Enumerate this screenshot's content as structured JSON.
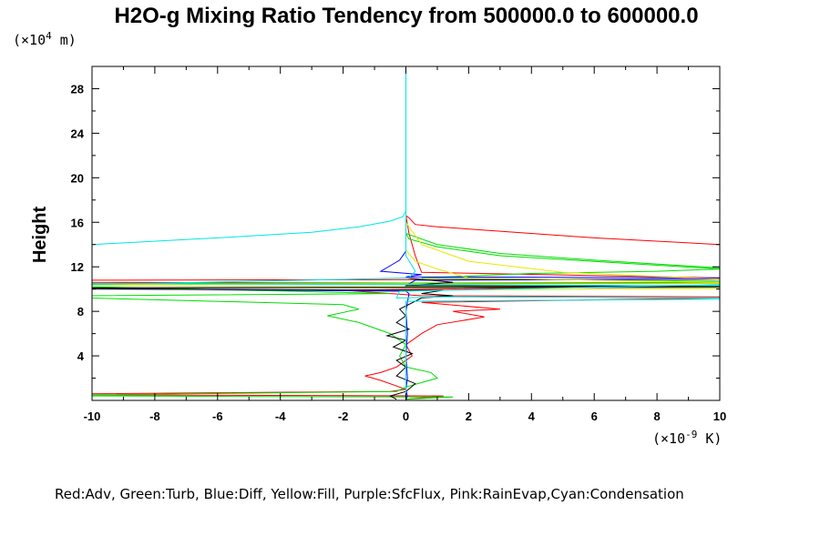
{
  "chart_data": {
    "type": "line",
    "title": "H2O-g Mixing Ratio Tendency from 500000.0 to 600000.0",
    "ylabel": "Height",
    "y_unit_prefix": "(×10",
    "y_unit_exp": "4",
    "y_unit_suffix": " m)",
    "x_unit_prefix": "(×10",
    "x_unit_exp": "-9",
    "x_unit_suffix": " K)",
    "legend_text": "Red:Adv, Green:Turb, Blue:Diff, Yellow:Fill, Purple:SfcFlux, Pink:RainEvap,Cyan:Condensation",
    "xlim": [
      -10,
      10
    ],
    "ylim": [
      0,
      30
    ],
    "x_ticks": [
      -10,
      -8,
      -6,
      -4,
      -2,
      0,
      2,
      4,
      6,
      8,
      10
    ],
    "y_ticks": [
      4,
      8,
      12,
      16,
      20,
      24,
      28
    ],
    "grid": false,
    "series": [
      {
        "name": "Red:Adv",
        "color": "#ff0000",
        "points": [
          [
            0,
            0.1
          ],
          [
            1.2,
            0.4
          ],
          [
            -10,
            0.5
          ],
          [
            -10,
            0.6
          ],
          [
            -0.5,
            0.8
          ],
          [
            0,
            1.0
          ],
          [
            -0.8,
            1.8
          ],
          [
            -1.3,
            2.2
          ],
          [
            -0.8,
            2.5
          ],
          [
            -0.3,
            3.0
          ],
          [
            0.2,
            4.0
          ],
          [
            0,
            5.0
          ],
          [
            0.5,
            6.0
          ],
          [
            1.0,
            6.8
          ],
          [
            2.5,
            7.5
          ],
          [
            1.5,
            8.0
          ],
          [
            3.0,
            8.2
          ],
          [
            0.5,
            8.8
          ],
          [
            10,
            9.2
          ],
          [
            10,
            9.3
          ],
          [
            0.5,
            9.4
          ],
          [
            -2,
            9.9
          ],
          [
            10,
            10.3
          ],
          [
            10,
            10.5
          ],
          [
            -10,
            10.6
          ],
          [
            -10,
            10.8
          ],
          [
            10,
            10.9
          ],
          [
            10,
            11.0
          ],
          [
            0.5,
            11.5
          ],
          [
            0.3,
            13.0
          ],
          [
            0.1,
            15.0
          ],
          [
            0,
            16.6
          ],
          [
            0.1,
            16.4
          ],
          [
            0.3,
            15.8
          ],
          [
            1,
            15.6
          ],
          [
            3,
            15.2
          ],
          [
            6,
            14.6
          ],
          [
            10,
            14.0
          ]
        ]
      },
      {
        "name": "Green:Turb",
        "color": "#00dd00",
        "points": [
          [
            0,
            0.1
          ],
          [
            1.5,
            0.3
          ],
          [
            -10,
            0.4
          ],
          [
            -10,
            0.5
          ],
          [
            -0.3,
            0.8
          ],
          [
            0,
            1.2
          ],
          [
            0.5,
            1.6
          ],
          [
            1.0,
            2.0
          ],
          [
            0.8,
            2.5
          ],
          [
            0,
            3.0
          ],
          [
            -0.2,
            4.0
          ],
          [
            0,
            5.0
          ],
          [
            -0.5,
            6.0
          ],
          [
            -1.5,
            7.0
          ],
          [
            -2.5,
            7.6
          ],
          [
            -1.5,
            8.2
          ],
          [
            -2.0,
            8.6
          ],
          [
            -10,
            9.2
          ],
          [
            -10,
            9.4
          ],
          [
            -0.5,
            9.6
          ],
          [
            -10,
            10.2
          ],
          [
            -10,
            10.5
          ],
          [
            10,
            10.6
          ],
          [
            10,
            10.7
          ],
          [
            0.5,
            11.0
          ],
          [
            4.0,
            11.4
          ],
          [
            8.0,
            11.6
          ],
          [
            10,
            11.8
          ],
          [
            3.0,
            13.0
          ],
          [
            1.0,
            13.8
          ],
          [
            0.1,
            14.5
          ],
          [
            0,
            15.0
          ],
          [
            1,
            14.0
          ],
          [
            3,
            13.2
          ],
          [
            6,
            12.6
          ],
          [
            10,
            11.9
          ]
        ]
      },
      {
        "name": "Blue:Diff",
        "color": "#0000ff",
        "points": [
          [
            0,
            0.05
          ],
          [
            0.05,
            0.4
          ],
          [
            0,
            1.0
          ],
          [
            0.05,
            2.0
          ],
          [
            0,
            4.0
          ],
          [
            0.05,
            6.0
          ],
          [
            0,
            8.0
          ],
          [
            0.1,
            9.6
          ],
          [
            0,
            9.8
          ],
          [
            -8,
            10.0
          ],
          [
            -10,
            10.1
          ],
          [
            10,
            10.15
          ],
          [
            10,
            10.2
          ],
          [
            0,
            10.3
          ],
          [
            0.3,
            10.8
          ],
          [
            10,
            10.9
          ],
          [
            10,
            11.0
          ],
          [
            0,
            11.1
          ],
          [
            0.5,
            11.3
          ],
          [
            -0.8,
            11.6
          ],
          [
            -0.5,
            12.1
          ],
          [
            -0.2,
            12.6
          ],
          [
            0,
            13.4
          ],
          [
            0,
            14.0
          ]
        ]
      },
      {
        "name": "Yellow:Fill",
        "color": "#e8e800",
        "points": [
          [
            0,
            9.9
          ],
          [
            10,
            10.05
          ],
          [
            10,
            10.15
          ],
          [
            -10,
            10.3
          ],
          [
            -10,
            10.4
          ],
          [
            10,
            10.5
          ],
          [
            10,
            10.6
          ],
          [
            2,
            11.0
          ],
          [
            1,
            11.8
          ],
          [
            0.3,
            12.5
          ],
          [
            0,
            13.5
          ],
          [
            0,
            16.0
          ],
          [
            0.5,
            14.0
          ],
          [
            2,
            12.5
          ],
          [
            5,
            11.5
          ],
          [
            10,
            10.9
          ]
        ]
      },
      {
        "name": "Black",
        "color": "#000000",
        "points": [
          [
            -0.3,
            0.1
          ],
          [
            -0.5,
            0.4
          ],
          [
            0,
            0.8
          ],
          [
            0.3,
            1.5
          ],
          [
            -0.3,
            2.2
          ],
          [
            0,
            3.0
          ],
          [
            -0.3,
            3.6
          ],
          [
            0.2,
            4.2
          ],
          [
            -0.4,
            4.8
          ],
          [
            0,
            5.4
          ],
          [
            -0.6,
            5.8
          ],
          [
            0.1,
            6.4
          ],
          [
            -0.3,
            7.0
          ],
          [
            0,
            7.6
          ],
          [
            -0.2,
            8.2
          ],
          [
            0.5,
            9.2
          ],
          [
            1.5,
            9.4
          ],
          [
            0.5,
            9.6
          ],
          [
            1.2,
            9.9
          ],
          [
            -10,
            10.0
          ],
          [
            -10,
            10.1
          ],
          [
            10,
            10.2
          ],
          [
            10,
            10.25
          ],
          [
            0,
            10.3
          ],
          [
            1.5,
            10.6
          ],
          [
            0,
            11.0
          ]
        ]
      },
      {
        "name": "Cyan:Condensation",
        "color": "#00e5e5",
        "points": [
          [
            -10,
            14.0
          ],
          [
            -6,
            14.6
          ],
          [
            -3,
            15.1
          ],
          [
            -1.5,
            15.6
          ],
          [
            -0.5,
            16.1
          ],
          [
            -0.1,
            16.5
          ],
          [
            0,
            17.0
          ],
          [
            0,
            30
          ],
          [
            0,
            17.0
          ],
          [
            0,
            13.0
          ],
          [
            0.3,
            11.6
          ],
          [
            0.1,
            11.0
          ],
          [
            -10,
            10.4
          ],
          [
            -10,
            10.5
          ],
          [
            10,
            10.3
          ],
          [
            10,
            10.4
          ],
          [
            -0.2,
            9.8
          ],
          [
            -0.3,
            9.2
          ],
          [
            1.2,
            9.3
          ],
          [
            10,
            9.2
          ],
          [
            10,
            9.1
          ],
          [
            0,
            8.9
          ],
          [
            0,
            0.1
          ]
        ]
      }
    ]
  }
}
